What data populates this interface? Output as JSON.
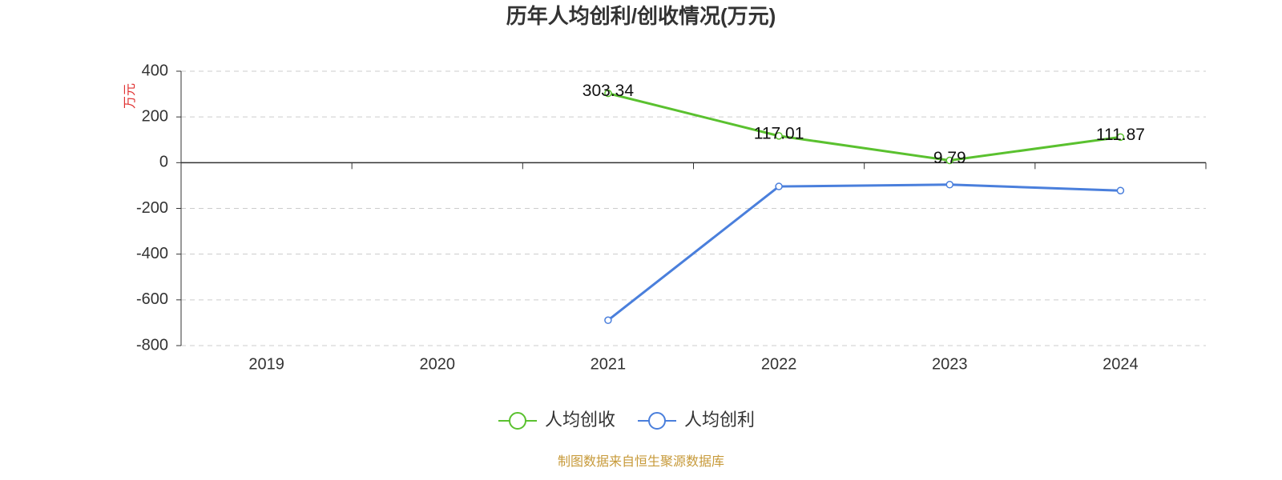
{
  "chart_data": {
    "type": "line",
    "title": "历年人均创利/创收情况(万元)",
    "y_label": "万元",
    "categories": [
      "2019",
      "2020",
      "2021",
      "2022",
      "2023",
      "2024"
    ],
    "series": [
      {
        "name": "人均创收",
        "color": "#5ac12f",
        "values": [
          null,
          null,
          303.34,
          117.01,
          9.79,
          111.87
        ],
        "show_labels": true
      },
      {
        "name": "人均创利",
        "color": "#4a7fdc",
        "values": [
          null,
          null,
          -689,
          -104,
          -96,
          -122
        ],
        "show_labels": false
      }
    ],
    "ylim": [
      -800,
      400
    ],
    "yticks": [
      -800,
      -600,
      -400,
      -200,
      0,
      200,
      400
    ],
    "grid": true,
    "source": "制图数据来自恒生聚源数据库"
  }
}
